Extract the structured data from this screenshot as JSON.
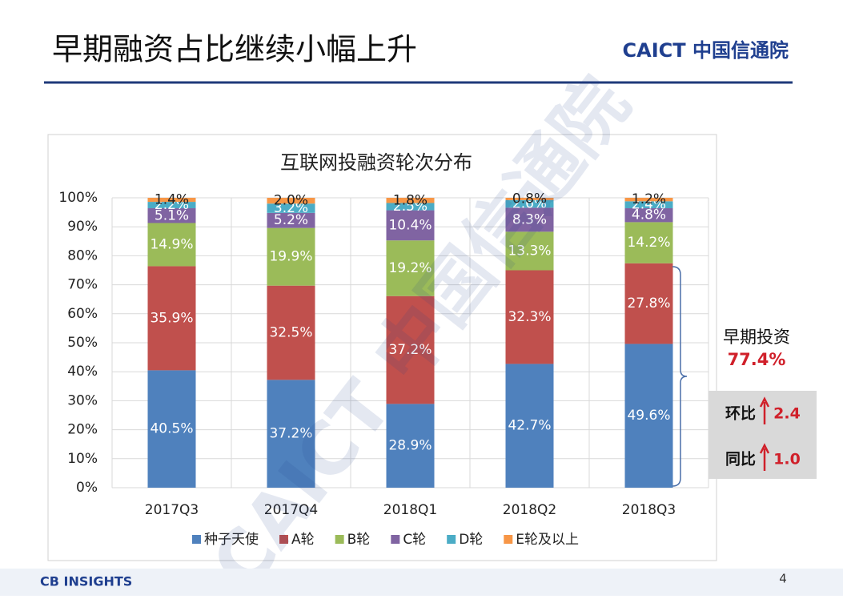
{
  "slide": {
    "title": "早期融资占比继续小幅上升",
    "logo": "CAICT 中国信通院",
    "watermark": "CAICT 中国信通院",
    "footer_logo": "CB INSIGHTS",
    "page_number": "4"
  },
  "chart_data": {
    "type": "stacked_bar",
    "title": "互联网投融资轮次分布",
    "categories": [
      "2017Q3",
      "2017Q4",
      "2018Q1",
      "2018Q2",
      "2018Q3"
    ],
    "series": [
      {
        "name": "种子天使",
        "color": "#4f81bd",
        "values": [
          40.5,
          37.2,
          28.9,
          42.7,
          49.6
        ],
        "value_labels": [
          "40.5%",
          "37.2%",
          "28.9%",
          "42.7%",
          "49.6%"
        ]
      },
      {
        "name": "A轮",
        "color": "#c0504d",
        "values": [
          35.9,
          32.5,
          37.2,
          32.3,
          27.8
        ],
        "value_labels": [
          "35.9%",
          "32.5%",
          "37.2%",
          "32.3%",
          "27.8%"
        ]
      },
      {
        "name": "B轮",
        "color": "#9bbb59",
        "values": [
          14.9,
          19.9,
          19.2,
          13.3,
          14.2
        ],
        "value_labels": [
          "14.9%",
          "19.9%",
          "19.2%",
          "13.3%",
          "14.2%"
        ]
      },
      {
        "name": "C轮",
        "color": "#8064a2",
        "values": [
          5.1,
          5.2,
          10.4,
          8.3,
          4.8
        ],
        "value_labels": [
          "5.1%",
          "5.2%",
          "10.4%",
          "8.3%",
          "4.8%"
        ]
      },
      {
        "name": "D轮",
        "color": "#4bacc6",
        "values": [
          2.2,
          3.2,
          2.5,
          2.6,
          2.4
        ],
        "value_labels": [
          "2.2%",
          "3.2%",
          "2.5%",
          "2.6%",
          "2.4%"
        ]
      },
      {
        "name": "E轮及以上",
        "color": "#f79646",
        "values": [
          1.4,
          2.0,
          1.8,
          0.8,
          1.2
        ],
        "value_labels": [
          "1.4%",
          "2.0%",
          "1.8%",
          "0.8%",
          "1.2%"
        ]
      }
    ],
    "ylim": [
      0,
      100
    ],
    "yticks": [
      {
        "value": 0,
        "label": "0%"
      },
      {
        "value": 10,
        "label": "10%"
      },
      {
        "value": 20,
        "label": "20%"
      },
      {
        "value": 30,
        "label": "30%"
      },
      {
        "value": 40,
        "label": "40%"
      },
      {
        "value": 50,
        "label": "50%"
      },
      {
        "value": 60,
        "label": "60%"
      },
      {
        "value": 70,
        "label": "70%"
      },
      {
        "value": 80,
        "label": "80%"
      },
      {
        "value": 90,
        "label": "90%"
      },
      {
        "value": 100,
        "label": "100%"
      }
    ],
    "grid": true,
    "legend": "bottom",
    "annotations": {
      "early_label": "早期投资",
      "early_value": "77.4%",
      "qoq_label": "环比",
      "qoq_value": "2.4",
      "yoy_label": "同比",
      "yoy_value": "1.0"
    }
  }
}
